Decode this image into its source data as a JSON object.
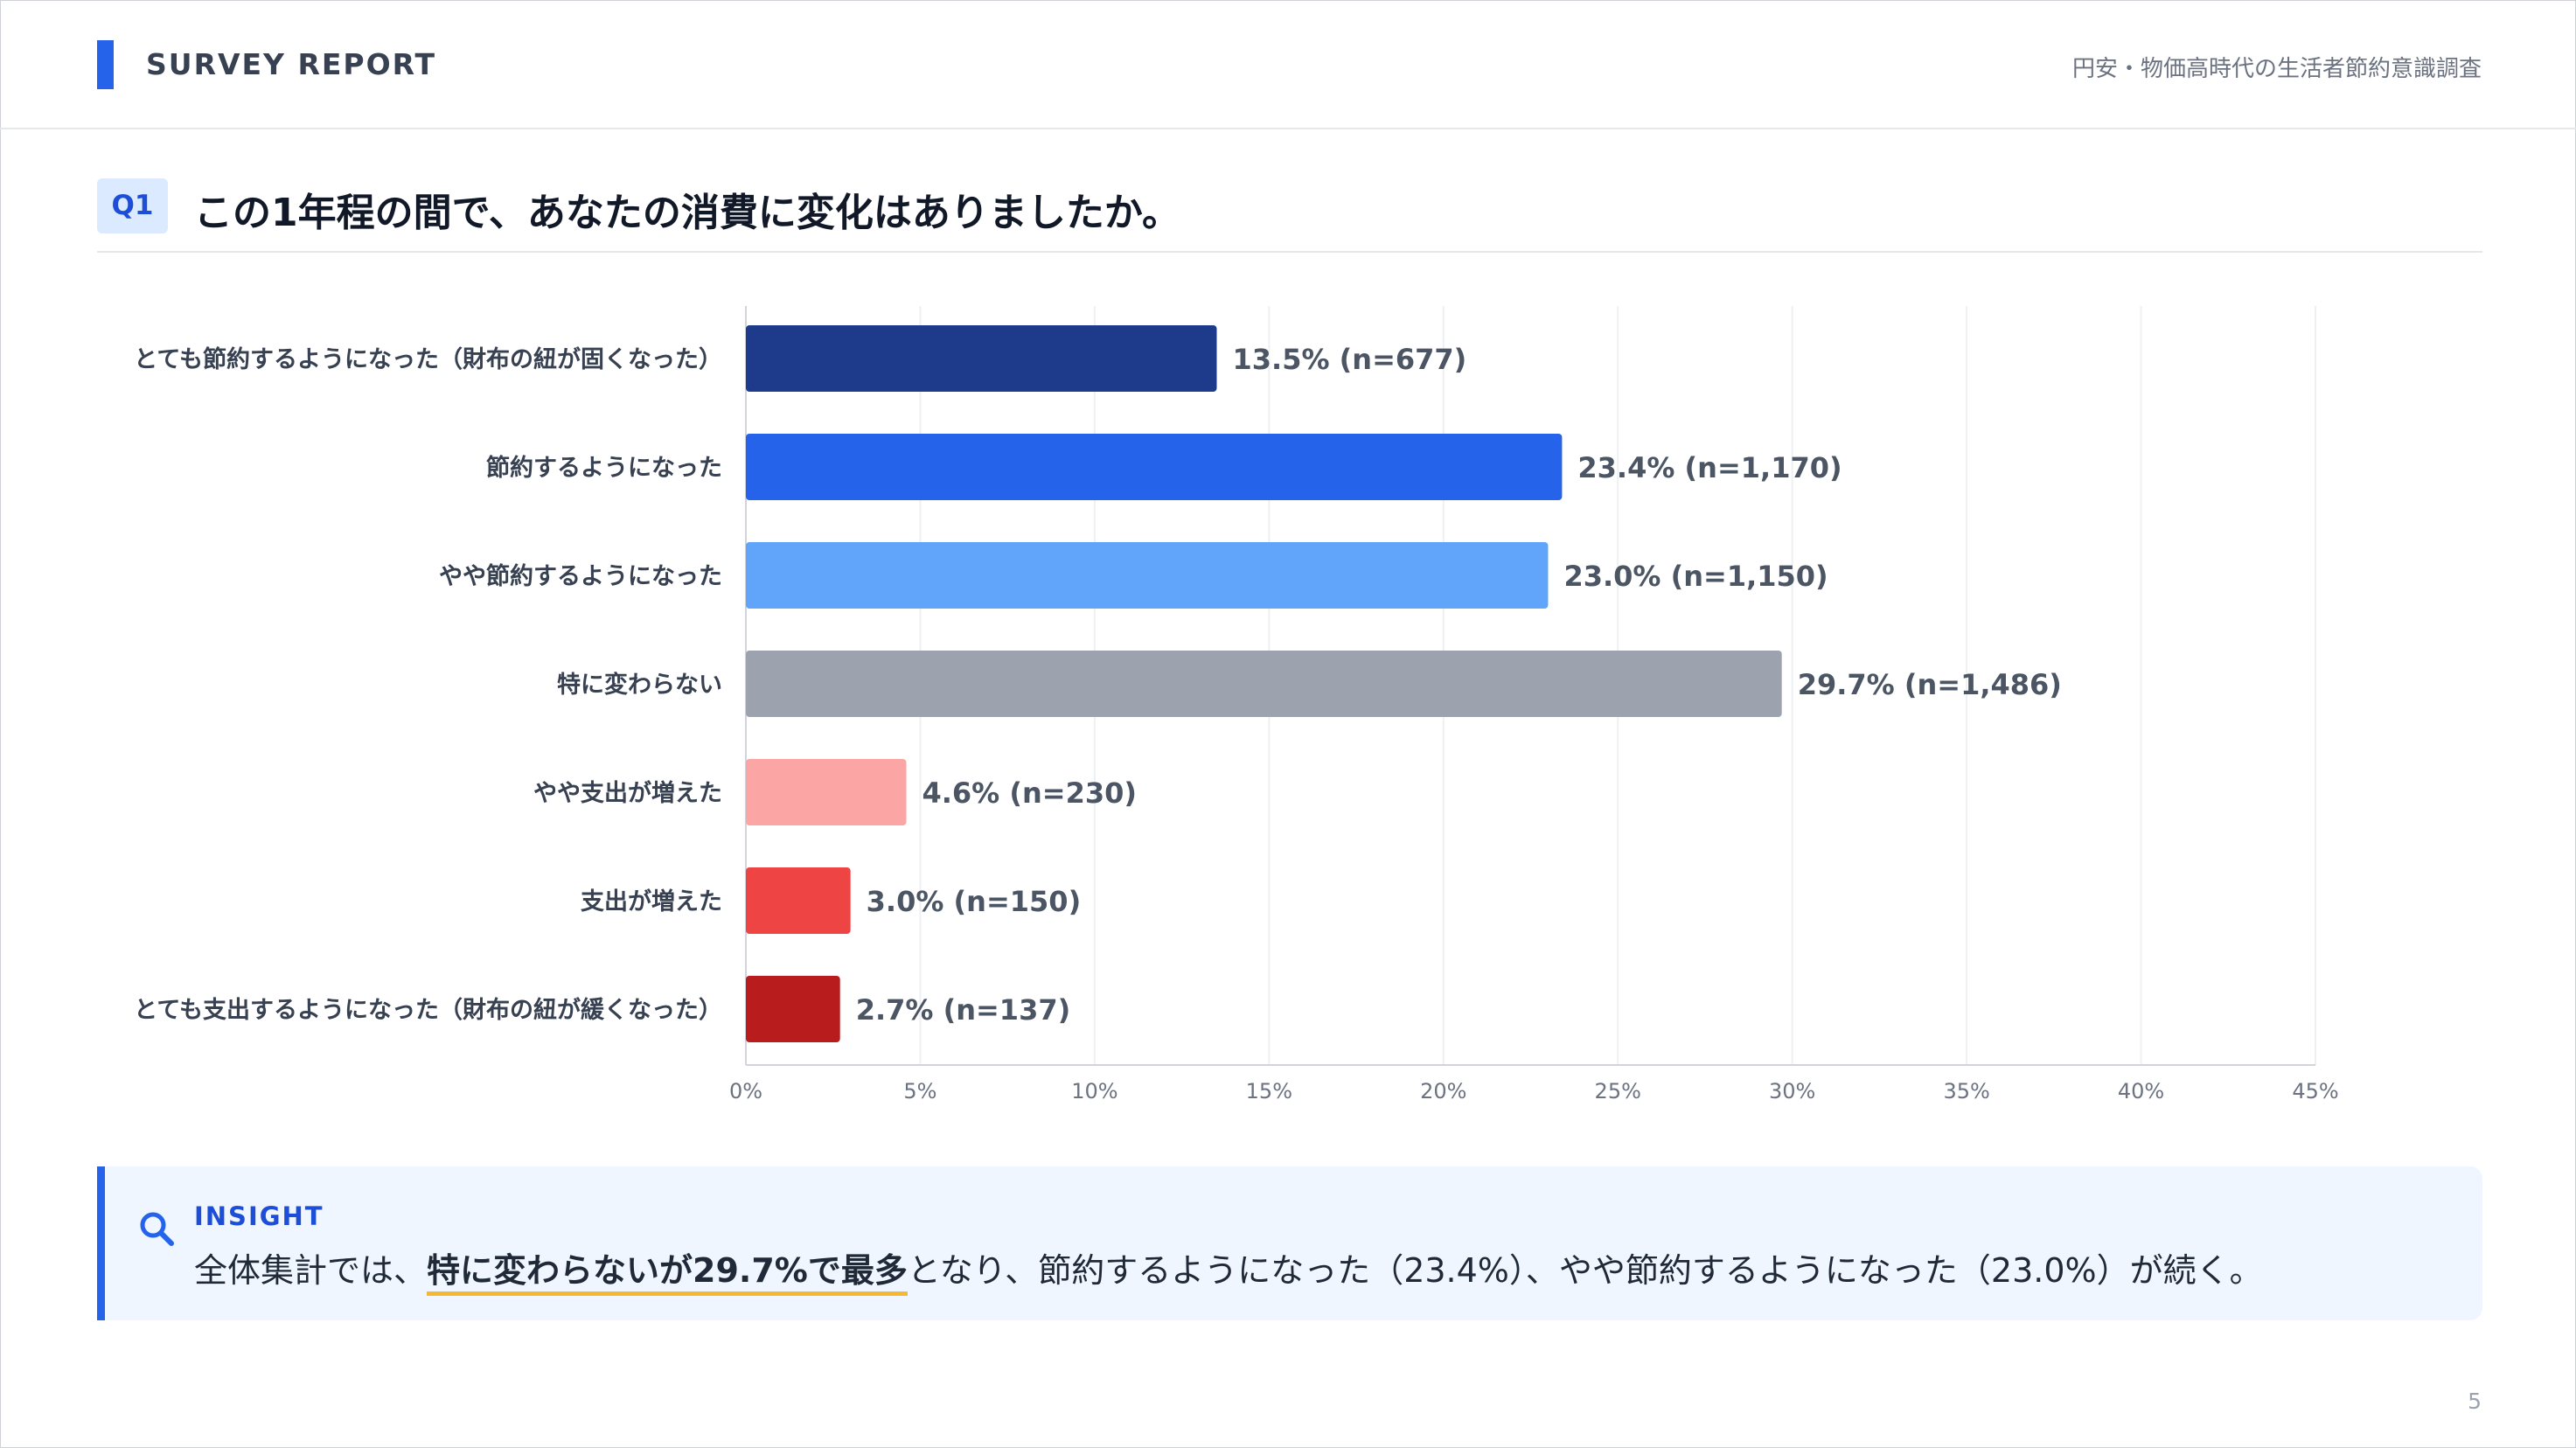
{
  "header": {
    "title": "SURVEY REPORT",
    "subtitle": "円安・物価高時代の生活者節約意識調査"
  },
  "question": {
    "badge": "Q1",
    "title": "この1年程の間で、あなたの消費に変化はありましたか。"
  },
  "chart_data": {
    "type": "bar",
    "orientation": "horizontal",
    "categories": [
      "とても節約するようになった（財布の紐が固くなった）",
      "節約するようになった",
      "やや節約するようになった",
      "特に変わらない",
      "やや支出が増えた",
      "支出が増えた",
      "とても支出するようになった（財布の紐が緩くなった）"
    ],
    "values": [
      13.5,
      23.4,
      23.0,
      29.7,
      4.6,
      3.0,
      2.7
    ],
    "data_labels": [
      "13.5% (n=677)",
      "23.4% (n=1,170)",
      "23.0% (n=1,150)",
      "29.7% (n=1,486)",
      "4.6% (n=230)",
      "3.0% (n=150)",
      "2.7% (n=137)"
    ],
    "colors": [
      "#1e3a8a",
      "#2563eb",
      "#60a5fa",
      "#9ca3af",
      "#fca5a5",
      "#ef4444",
      "#b91c1c"
    ],
    "x_ticks": [
      0,
      5,
      10,
      15,
      20,
      25,
      30,
      35,
      40,
      45
    ],
    "x_tick_labels": [
      "0%",
      "5%",
      "10%",
      "15%",
      "20%",
      "25%",
      "30%",
      "35%",
      "40%",
      "45%"
    ],
    "xlim": [
      0,
      45
    ],
    "grid": "vertical"
  },
  "insight": {
    "label": "INSIGHT",
    "text_before": "全体集計では、",
    "highlight": "特に変わらないが29.7%で最多",
    "text_after": "となり、節約するようになった（23.4%）、やや節約するようになった（23.0%）が続く。",
    "icon": "search-icon"
  },
  "page_number": "5"
}
